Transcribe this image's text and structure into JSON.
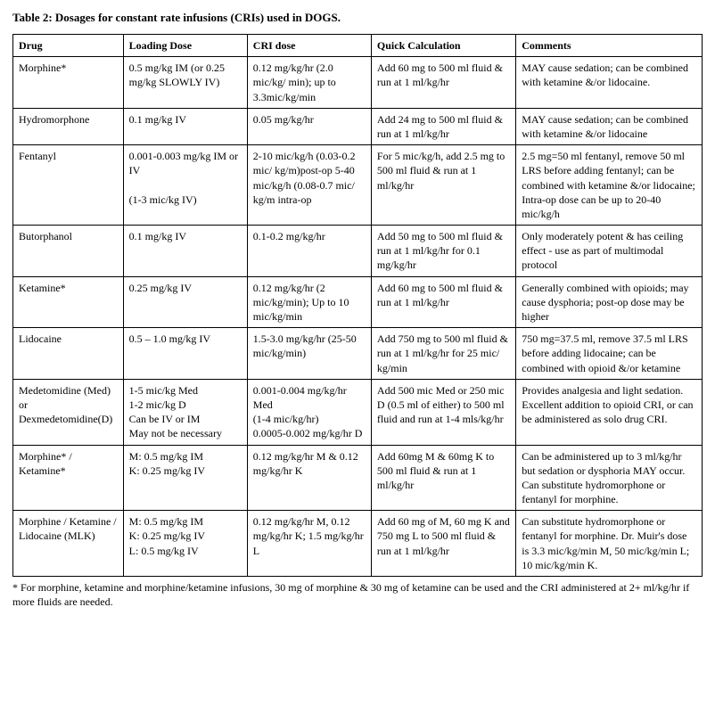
{
  "title": "Table 2: Dosages for constant rate infusions (CRIs) used in DOGS.",
  "columns": [
    "Drug",
    "Loading Dose",
    "CRI dose",
    "Quick Calculation",
    "Comments"
  ],
  "rows": [
    {
      "drug": "Morphine*",
      "loading": "0.5 mg/kg IM (or 0.25 mg/kg SLOWLY IV)",
      "cri": "0.12  mg/kg/hr (2.0 mic/kg/ min); up to 3.3mic/kg/min",
      "quick": "Add 60 mg to 500 ml fluid & run at 1 ml/kg/hr",
      "comments": " MAY cause sedation; can be combined with ketamine &/or lidocaine."
    },
    {
      "drug": "Hydromorphone",
      "loading": "0.1 mg/kg IV",
      "cri": "0.05 mg/kg/hr",
      "quick": "Add 24 mg to 500 ml fluid & run at 1 ml/kg/hr",
      "comments": " MAY cause sedation; can be combined with ketamine &/or lidocaine"
    },
    {
      "drug": "Fentanyl",
      "loading": "0.001-0.003 mg/kg IM or IV\n\n(1-3 mic/kg IV)",
      "cri": "2-10 mic/kg/h (0.03-0.2 mic/ kg/m)post-op 5-40 mic/kg/h (0.08-0.7 mic/ kg/m intra-op",
      "quick": "For 5 mic/kg/h, add 2.5 mg to 500 ml fluid & run at 1 ml/kg/hr",
      "comments": "2.5 mg=50 ml fentanyl, remove 50 ml LRS before adding fentanyl; can be combined with ketamine &/or lidocaine; Intra-op dose can be up to 20-40 mic/kg/h"
    },
    {
      "drug": "Butorphanol",
      "loading": "0.1 mg/kg IV",
      "cri": "0.1-0.2 mg/kg/hr",
      "quick": "Add 50 mg to 500 ml fluid & run at 1 ml/kg/hr for 0.1 mg/kg/hr",
      "comments": "Only moderately potent & has ceiling effect - use as part of multimodal protocol"
    },
    {
      "drug": "Ketamine*",
      "loading": "0.25 mg/kg IV",
      "cri": "0.12 mg/kg/hr (2 mic/kg/min); Up to 10 mic/kg/min",
      "quick": "Add 60 mg to 500 ml fluid & run at 1 ml/kg/hr",
      "comments": "Generally combined with opioids; may cause dysphoria; post-op dose may be higher"
    },
    {
      "drug": "Lidocaine",
      "loading": "0.5 – 1.0 mg/kg IV",
      "cri": "1.5-3.0  mg/kg/hr (25-50  mic/kg/min)",
      "quick": "Add 750 mg to 500 ml fluid & run at 1 ml/kg/hr for 25 mic/ kg/min",
      "comments": "750 mg=37.5 ml, remove 37.5 ml LRS before adding lidocaine; can be combined with opioid &/or ketamine"
    },
    {
      "drug": "Medetomidine (Med) or Dexmedetomidine(D)",
      "loading": "1-5 mic/kg Med\n1-2 mic/kg D\nCan be IV or IM\nMay not be necessary",
      "cri": "0.001-0.004 mg/kg/hr Med\n(1-4 mic/kg/hr)\n0.0005-0.002 mg/kg/hr D",
      "quick": "Add 500 mic Med or 250 mic D (0.5 ml of either) to 500 ml fluid and run at 1-4 mls/kg/hr",
      "comments": "Provides analgesia and light sedation. Excellent addition to opioid CRI, or can be administered as solo drug CRI."
    },
    {
      "drug": "Morphine* / Ketamine*",
      "loading": "M: 0.5 mg/kg IM\nK: 0.25 mg/kg IV",
      "cri": "0.12  mg/kg/hr  M & 0.12 mg/kg/hr  K",
      "quick": "Add 60mg M & 60mg K to 500 ml fluid & run at 1 ml/kg/hr",
      "comments": "Can be administered up to 3 ml/kg/hr but sedation or dysphoria MAY occur. Can substitute hydromorphone or fentanyl for morphine."
    },
    {
      "drug": "Morphine / Ketamine / Lidocaine (MLK)",
      "loading": "M: 0.5 mg/kg IM\nK: 0.25 mg/kg IV\nL: 0.5 mg/kg IV",
      "cri": "0.12 mg/kg/hr M, 0.12 mg/kg/hr K; 1.5 mg/kg/hr L",
      "quick": "Add 60 mg of M, 60 mg K and 750 mg  L to 500 ml fluid & run at 1 ml/kg/hr",
      "comments": "Can substitute hydromorphone or fentanyl for morphine. Dr. Muir's dose is 3.3 mic/kg/min M, 50 mic/kg/min L; 10 mic/kg/min K."
    }
  ],
  "footnote": "* For morphine, ketamine and morphine/ketamine infusions, 30 mg of morphine & 30 mg of ketamine can be used and the CRI administered at 2+ ml/kg/hr if more fluids are needed."
}
